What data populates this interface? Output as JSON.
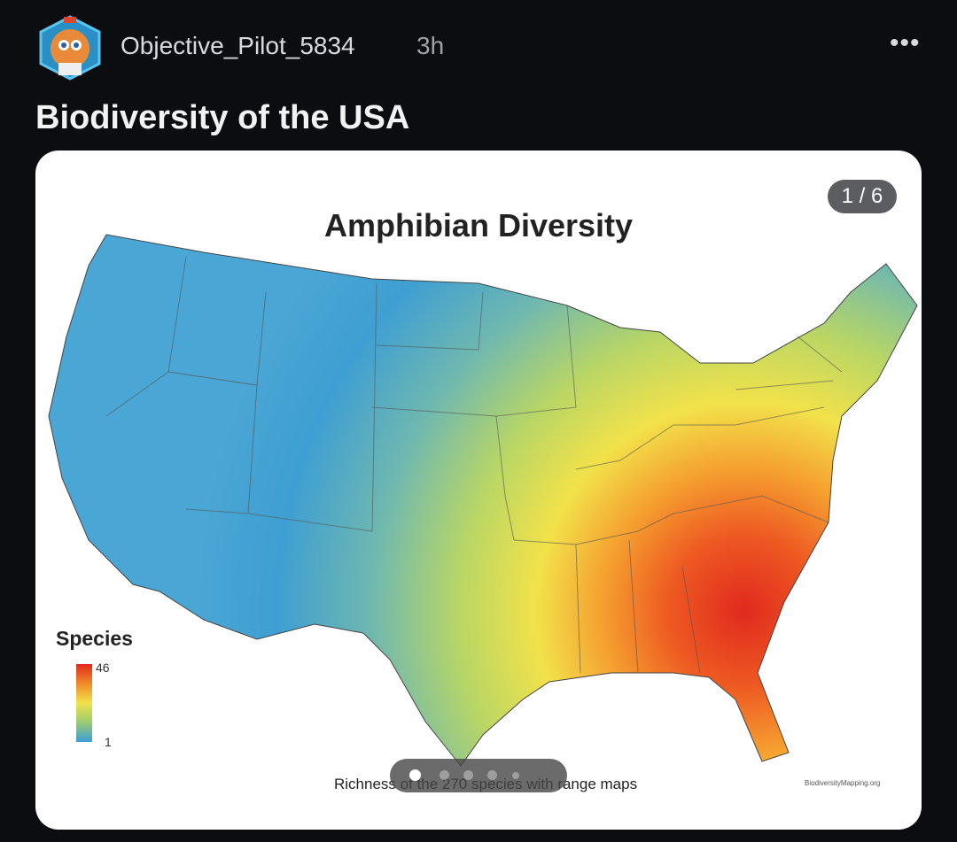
{
  "post": {
    "author": "Objective_Pilot_5834",
    "age": "3h",
    "title": "Biodiversity of the USA",
    "more_icon": "more-horizontal-icon"
  },
  "gallery": {
    "counter": "1 / 6",
    "current": 1,
    "total": 6
  },
  "image": {
    "title": "Amphibian Diversity",
    "legend_title": "Species",
    "legend_max": "46",
    "legend_min": "1",
    "caption": "Richness of the 270 species with range maps",
    "watermark": "BiodiversityMapping.org",
    "colors": {
      "low": "#3b9fd6",
      "mid": "#f2e24a",
      "high": "#e02a1e"
    }
  }
}
